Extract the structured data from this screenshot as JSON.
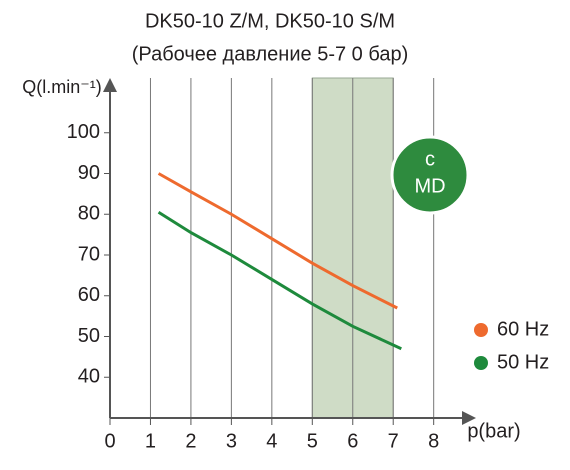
{
  "chart_data": {
    "type": "line",
    "title": "DK50-10 Z/M, DK50-10 S/M",
    "subtitle": "(Рабочее давление 5-7 0 бар)",
    "y_label": "Q(l.min⁻¹)",
    "x_label": "p(bar)",
    "xlim": [
      0,
      8.7
    ],
    "xticks": [
      0,
      1,
      2,
      3,
      4,
      5,
      6,
      7,
      8
    ],
    "ylim": [
      30,
      110
    ],
    "yticks": [
      40,
      50,
      60,
      70,
      80,
      90,
      100
    ],
    "grid": true,
    "shaded_region": [
      5,
      7
    ],
    "badge": [
      "c",
      "MD"
    ],
    "legend": "right",
    "series": [
      {
        "name": "60 Hz",
        "color": "#ee6a2e",
        "x": [
          1.2,
          2,
          3,
          4,
          5,
          6,
          7.1
        ],
        "values": [
          90,
          85.5,
          80,
          74,
          68,
          62.5,
          57
        ]
      },
      {
        "name": "50 Hz",
        "color": "#1e8a3c",
        "x": [
          1.2,
          2,
          3,
          4,
          5,
          6,
          7.2
        ],
        "values": [
          80.5,
          75.5,
          70,
          64,
          58,
          52.5,
          47
        ]
      }
    ]
  }
}
